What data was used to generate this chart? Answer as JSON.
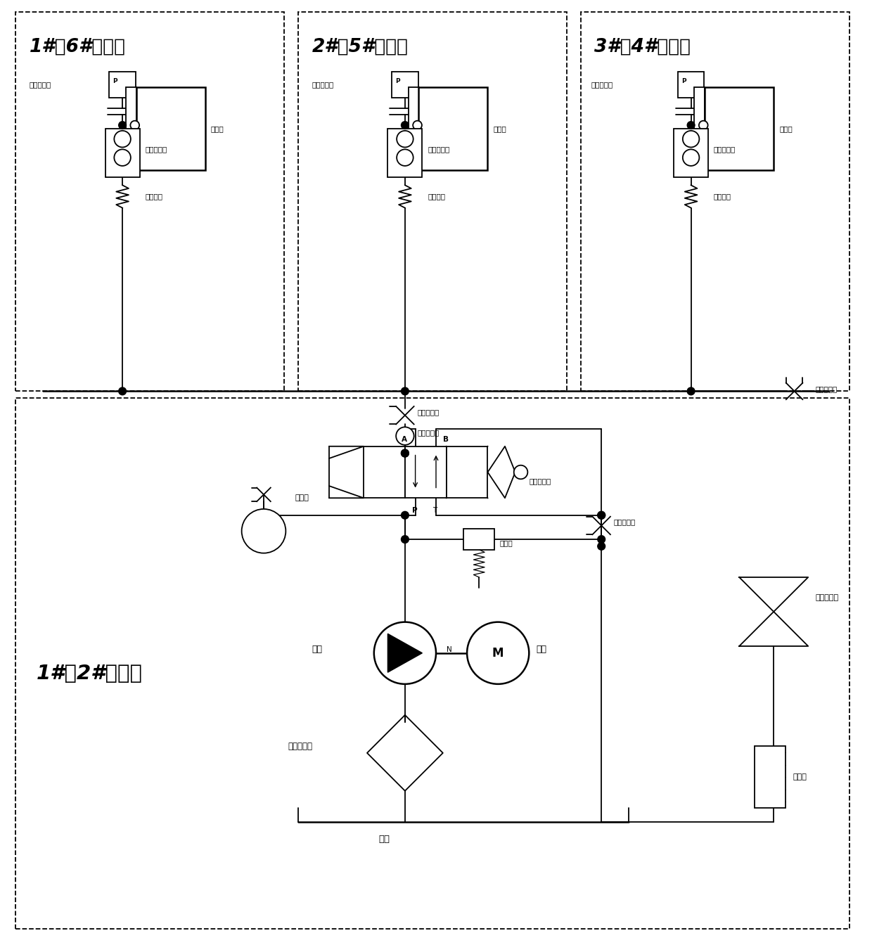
{
  "bg": "#ffffff",
  "lc": "#000000",
  "t1": "1#（6#）台车",
  "t2": "2#（5#）台车",
  "t3": "3#（4#）台车",
  "tp": "1#（2#）泵站",
  "hyd": "液压缸",
  "psen": "压力传感器",
  "hpv": "高压防爆鄀",
  "qcon": "快装接头",
  "thr1": "节流截止鄀",
  "chk": "单向节流鄀",
  "man": "手动换向鄀",
  "saf": "安全鄀",
  "pgauge": "压力表",
  "pump": "油泵",
  "motor": "电机",
  "ofilt": "吸油滤油器",
  "tank": "油筱",
  "afilt": "空气滤清器",
  "lvl": "液位计",
  "thr_r": "节流截止鄀"
}
